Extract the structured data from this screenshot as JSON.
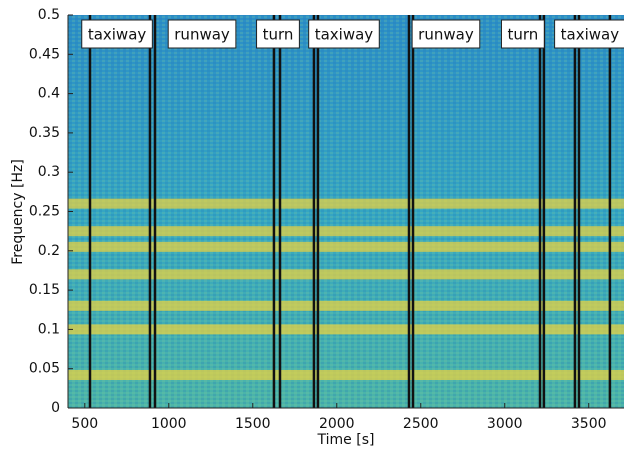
{
  "chart_data": {
    "type": "spectrogram",
    "xlabel": "Time [s]",
    "ylabel": "Frequency [Hz]",
    "xlim": [
      400,
      3710
    ],
    "ylim": [
      0,
      0.5
    ],
    "xticks": [
      500,
      1000,
      1500,
      2000,
      2500,
      3000,
      3500
    ],
    "yticks": [
      0,
      0.05,
      0.1,
      0.15,
      0.2,
      0.25,
      0.3,
      0.35,
      0.4,
      0.45,
      0.5
    ],
    "bright_bands": [
      0.042,
      0.1,
      0.13,
      0.17,
      0.205,
      0.225,
      0.26
    ],
    "band_color": "#f2d43a",
    "background_color": "#2a9cc4",
    "event_lines": [
      531,
      888,
      918,
      1626,
      1662,
      1864,
      1888,
      2430,
      2454,
      3210,
      3233,
      3418,
      3442,
      3626
    ],
    "segments": [
      {
        "label": "taxiway",
        "x": 692
      },
      {
        "label": "runway",
        "x": 1198
      },
      {
        "label": "turn",
        "x": 1650
      },
      {
        "label": "taxiway",
        "x": 2043
      },
      {
        "label": "runway",
        "x": 2650
      },
      {
        "label": "turn",
        "x": 3108
      },
      {
        "label": "taxiway",
        "x": 3507
      }
    ]
  }
}
